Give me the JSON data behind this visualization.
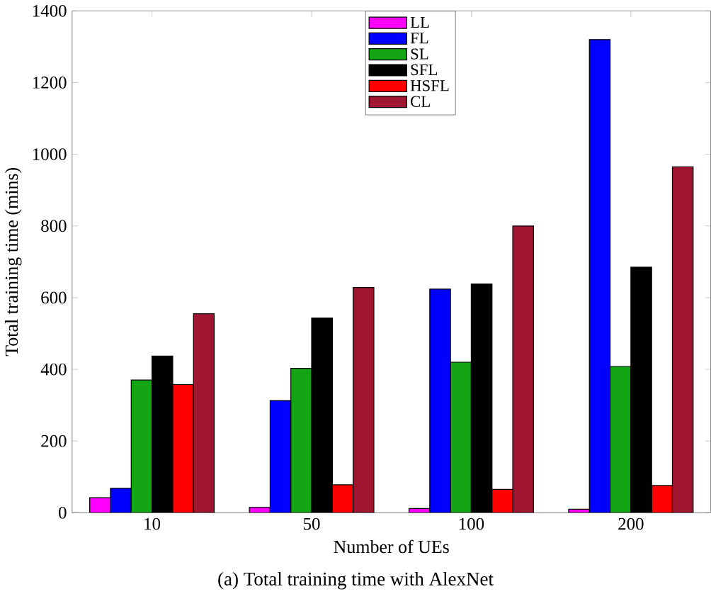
{
  "chart_data": {
    "type": "bar",
    "xlabel": "Number of UEs",
    "ylabel": "Total training time (mins)",
    "categories": [
      "10",
      "50",
      "100",
      "200"
    ],
    "series": [
      {
        "name": "LL",
        "color": "#ff00ff",
        "values": [
          42,
          15,
          12,
          10
        ]
      },
      {
        "name": "FL",
        "color": "#0000ff",
        "values": [
          68,
          313,
          624,
          1320
        ]
      },
      {
        "name": "SL",
        "color": "#14a514",
        "values": [
          370,
          403,
          420,
          408
        ]
      },
      {
        "name": "SFL",
        "color": "#000000",
        "values": [
          437,
          543,
          638,
          685
        ]
      },
      {
        "name": "HSFL",
        "color": "#ff0000",
        "values": [
          358,
          78,
          65,
          76
        ]
      },
      {
        "name": "CL",
        "color": "#a01530",
        "values": [
          555,
          628,
          800,
          965
        ]
      }
    ],
    "ylim": [
      0,
      1400
    ],
    "yticks": [
      0,
      200,
      400,
      600,
      800,
      1000,
      1200,
      1400
    ],
    "legend": "top",
    "grid": false,
    "annotations": [
      "(a) Total training time with AlexNet"
    ]
  }
}
